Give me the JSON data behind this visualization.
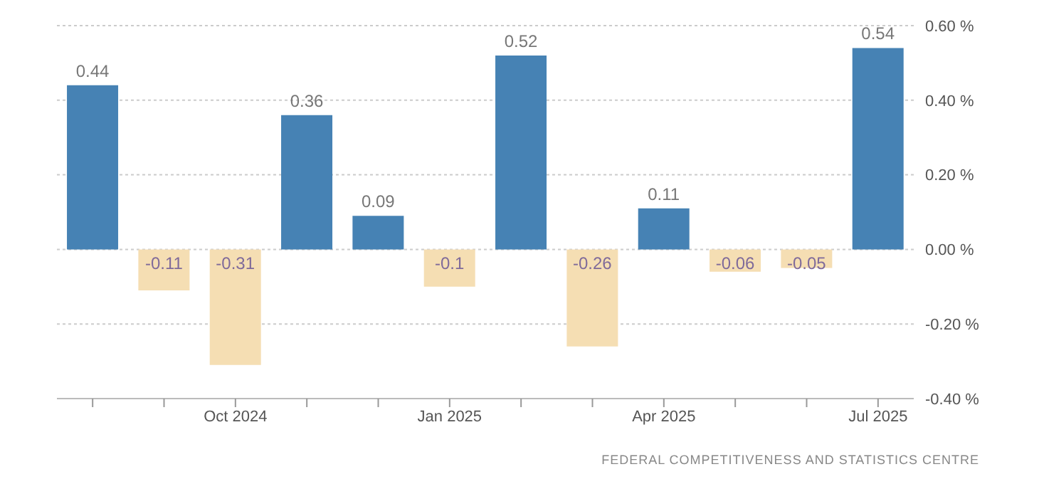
{
  "chart_data": {
    "type": "bar",
    "categories": [
      null,
      null,
      "Oct 2024",
      null,
      null,
      "Jan 2025",
      null,
      null,
      "Apr 2025",
      null,
      null,
      "Jul 2025"
    ],
    "values": [
      0.44,
      -0.11,
      -0.31,
      0.36,
      0.09,
      -0.1,
      0.52,
      -0.26,
      0.11,
      -0.06,
      -0.05,
      0.54
    ],
    "colors": [
      "#4682b4",
      "#f5deb3",
      "#f5deb3",
      "#4682b4",
      "#4682b4",
      "#f5deb3",
      "#4682b4",
      "#f5deb3",
      "#4682b4",
      "#f5deb3",
      "#f5deb3",
      "#4682b4"
    ],
    "data_labels": true,
    "ylim": [
      -0.4,
      0.6
    ],
    "yticks": [
      {
        "value": -0.4,
        "label": "-0.40 %"
      },
      {
        "value": -0.2,
        "label": "-0.20 %"
      },
      {
        "value": 0,
        "label": "0.00 %"
      },
      {
        "value": 0.2,
        "label": "0.20 %"
      },
      {
        "value": 0.4,
        "label": "0.40 %"
      },
      {
        "value": 0.6,
        "label": "0.60 %"
      }
    ],
    "grid": "y",
    "legend": false,
    "annotations": [
      "FEDERAL COMPETITIVENESS AND STATISTICS CENTRE"
    ]
  }
}
